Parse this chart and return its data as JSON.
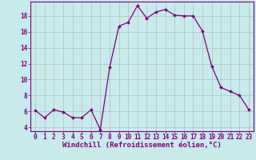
{
  "x": [
    0,
    1,
    2,
    3,
    4,
    5,
    6,
    7,
    8,
    9,
    10,
    11,
    12,
    13,
    14,
    15,
    16,
    17,
    18,
    19,
    20,
    21,
    22,
    23
  ],
  "y": [
    6.1,
    5.2,
    6.2,
    5.9,
    5.2,
    5.2,
    6.2,
    3.7,
    11.5,
    16.7,
    17.2,
    19.3,
    17.7,
    18.5,
    18.8,
    18.1,
    18.0,
    18.0,
    16.1,
    11.7,
    9.0,
    8.5,
    8.0,
    6.2
  ],
  "line_color": "#800080",
  "marker": "D",
  "marker_size": 2,
  "background_color": "#c8eaea",
  "grid_color": "#aaaaaa",
  "xlabel": "Windchill (Refroidissement éolien,°C)",
  "ylim": [
    3.5,
    19.8
  ],
  "xlim": [
    -0.5,
    23.5
  ],
  "yticks": [
    4,
    6,
    8,
    10,
    12,
    14,
    16,
    18
  ],
  "xticks": [
    0,
    1,
    2,
    3,
    4,
    5,
    6,
    7,
    8,
    9,
    10,
    11,
    12,
    13,
    14,
    15,
    16,
    17,
    18,
    19,
    20,
    21,
    22,
    23
  ],
  "tick_color": "#800080",
  "label_fontsize": 6.5,
  "tick_fontsize": 5.5
}
